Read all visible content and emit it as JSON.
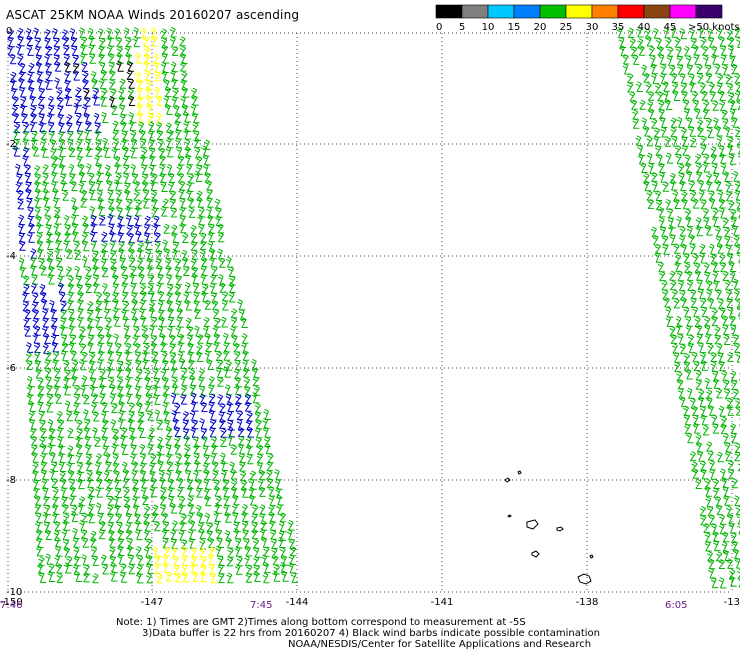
{
  "title": "ASCAT 25KM NOAA Winds 20160207 ascending",
  "legend": {
    "labels": [
      "0",
      "5",
      "10",
      "15",
      "20",
      "25",
      "30",
      "35",
      "40",
      "45",
      ">50 knots"
    ],
    "colors": [
      "#000000",
      "#7f7f7f",
      "#00c8ff",
      "#0080ff",
      "#00c000",
      "#ffff00",
      "#ff8000",
      "#ff0000",
      "#8b4513",
      "#ff00ff",
      "#3c006e"
    ]
  },
  "axes": {
    "lon_labels": [
      "-150",
      "-147",
      "-144",
      "-141",
      "-138",
      "-13"
    ],
    "lat_labels": [
      "0",
      "-2",
      "-4",
      "-6",
      "-8",
      "-10"
    ]
  },
  "times": [
    "7:46",
    "7:45",
    "6:05"
  ],
  "barb_colors": {
    "green": "#00b400",
    "blue": "#0000c8",
    "yellow": "#ffff00",
    "black": "#000000"
  },
  "notes": {
    "line1": "Note: 1) Times are GMT 2)Times along bottom correspond to measurement at -5S",
    "line2": "3)Data buffer is 22 hrs from 20160207 4) Black wind barbs indicate possible contamination",
    "line3": "NOAA/NESDIS/Center for Satellite Applications and Research"
  }
}
